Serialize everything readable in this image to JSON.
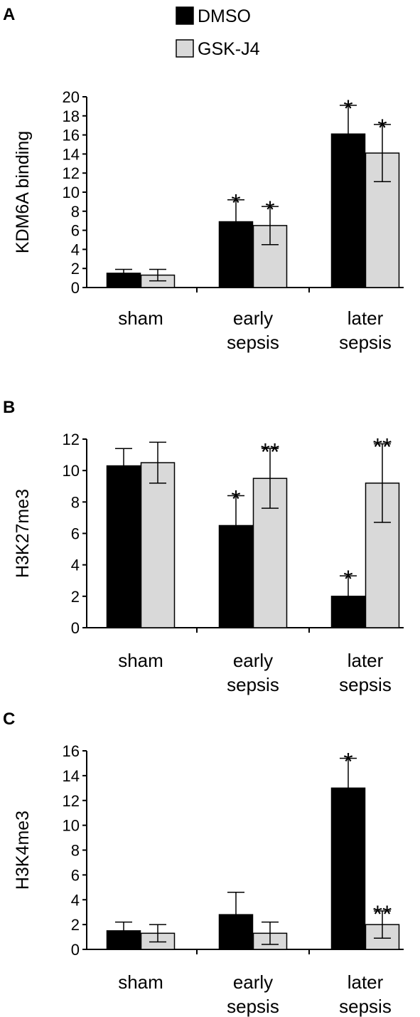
{
  "legend": {
    "items": [
      {
        "label": "DMSO",
        "color": "#000000"
      },
      {
        "label": "GSK-J4",
        "color": "#d9d9d9"
      }
    ]
  },
  "colors": {
    "DMSO": "#000000",
    "GSK-J4": "#d9d9d9",
    "axis": "#000000"
  },
  "chart_data": [
    {
      "type": "bar",
      "panel": "A",
      "ylabel": "KDM6A binding",
      "xlabel": "",
      "ylim": [
        0,
        20
      ],
      "yticks": [
        0,
        2,
        4,
        6,
        8,
        10,
        12,
        14,
        16,
        18,
        20
      ],
      "categories": [
        [
          "sham"
        ],
        [
          "early",
          "sepsis"
        ],
        [
          "later",
          "sepsis"
        ]
      ],
      "series": [
        {
          "name": "DMSO",
          "values": [
            1.5,
            6.9,
            16.1
          ],
          "errors": [
            0.4,
            2.3,
            3.0
          ],
          "annotations": [
            "",
            "*",
            "*"
          ]
        },
        {
          "name": "GSK-J4",
          "values": [
            1.3,
            6.5,
            14.1
          ],
          "errors": [
            0.6,
            2.0,
            3.0
          ],
          "annotations": [
            "",
            "*",
            "*"
          ]
        }
      ]
    },
    {
      "type": "bar",
      "panel": "B",
      "ylabel": "H3K27me3",
      "xlabel": "",
      "ylim": [
        0,
        12
      ],
      "yticks": [
        0,
        2,
        4,
        6,
        8,
        10,
        12
      ],
      "categories": [
        [
          "sham"
        ],
        [
          "early",
          "sepsis"
        ],
        [
          "later",
          "sepsis"
        ]
      ],
      "series": [
        {
          "name": "DMSO",
          "values": [
            10.3,
            6.5,
            2.0
          ],
          "errors": [
            1.1,
            1.9,
            1.3
          ],
          "annotations": [
            "",
            "*",
            "*"
          ]
        },
        {
          "name": "GSK-J4",
          "values": [
            10.5,
            9.5,
            9.2
          ],
          "errors": [
            1.3,
            1.9,
            2.5
          ],
          "annotations": [
            "",
            "**",
            "**"
          ]
        }
      ]
    },
    {
      "type": "bar",
      "panel": "C",
      "ylabel": "H3K4me3",
      "xlabel": "",
      "ylim": [
        0,
        16
      ],
      "yticks": [
        0,
        2,
        4,
        6,
        8,
        10,
        12,
        14,
        16
      ],
      "categories": [
        [
          "sham"
        ],
        [
          "early",
          "sepsis"
        ],
        [
          "later",
          "sepsis"
        ]
      ],
      "series": [
        {
          "name": "DMSO",
          "values": [
            1.5,
            2.8,
            13.0
          ],
          "errors": [
            0.7,
            1.8,
            2.4
          ],
          "annotations": [
            "",
            "",
            "*"
          ]
        },
        {
          "name": "GSK-J4",
          "values": [
            1.3,
            1.3,
            2.0
          ],
          "errors": [
            0.7,
            0.9,
            1.1
          ],
          "annotations": [
            "",
            "",
            "**"
          ]
        }
      ]
    }
  ]
}
